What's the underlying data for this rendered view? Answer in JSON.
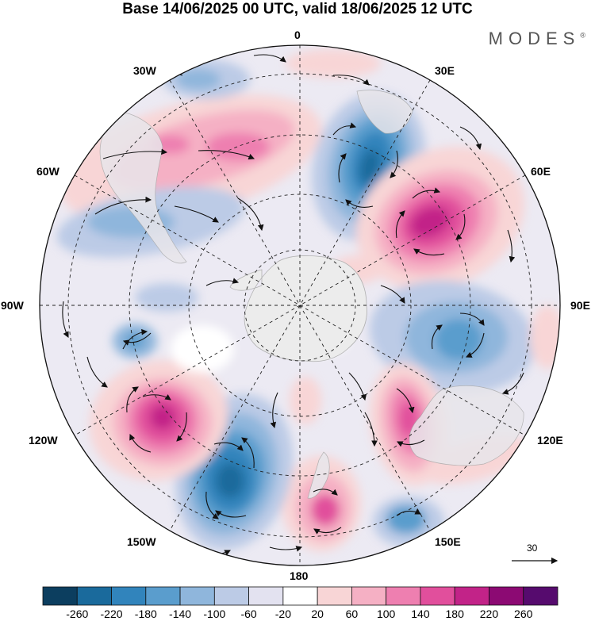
{
  "title": "Base 14/06/2025 00 UTC, valid 18/06/2025 12 UTC",
  "brand": "MODES",
  "brand_mark": "®",
  "longitude_labels": {
    "top": "0",
    "bottom": "180",
    "left": "90W",
    "right": "90E",
    "nw_upper": "30W",
    "nw_lower": "60W",
    "ne_upper": "30E",
    "ne_lower": "60E",
    "sw_upper": "120W",
    "sw_lower": "150W",
    "se_upper": "120E",
    "se_lower": "150E"
  },
  "projection": "south-polar-stereographic",
  "reference_vector": {
    "label": "30",
    "value": 30
  },
  "colorbar": {
    "ticks": [
      "-260",
      "-220",
      "-180",
      "-140",
      "-100",
      "-60",
      "-20",
      "20",
      "60",
      "100",
      "140",
      "180",
      "220",
      "260"
    ],
    "colors": [
      "#0c3e5f",
      "#1a6a9c",
      "#3184bc",
      "#5a9dcd",
      "#8fb6dc",
      "#bccbe6",
      "#e3e2f0",
      "#ffffff",
      "#f8d5d6",
      "#f5b0c4",
      "#ee7fb0",
      "#e14f9c",
      "#c22388",
      "#8c0a73",
      "#560b6e"
    ]
  },
  "features": [
    {
      "name": "anomaly-low-south-atlantic",
      "sign": "negative",
      "peak": -200
    },
    {
      "name": "anomaly-high-south-indian",
      "sign": "positive",
      "peak": 220
    },
    {
      "name": "anomaly-low-southeast-indian",
      "sign": "negative",
      "peak": -140
    },
    {
      "name": "anomaly-high-southwest-pacific",
      "sign": "positive",
      "peak": 200
    },
    {
      "name": "anomaly-low-south-pacific",
      "sign": "negative",
      "peak": -220
    },
    {
      "name": "anomaly-high-tasman",
      "sign": "positive",
      "peak": 180
    },
    {
      "name": "anomaly-high-south-america",
      "sign": "positive",
      "peak": 140
    },
    {
      "name": "anomaly-low-drake-passage",
      "sign": "negative",
      "peak": -100
    }
  ]
}
